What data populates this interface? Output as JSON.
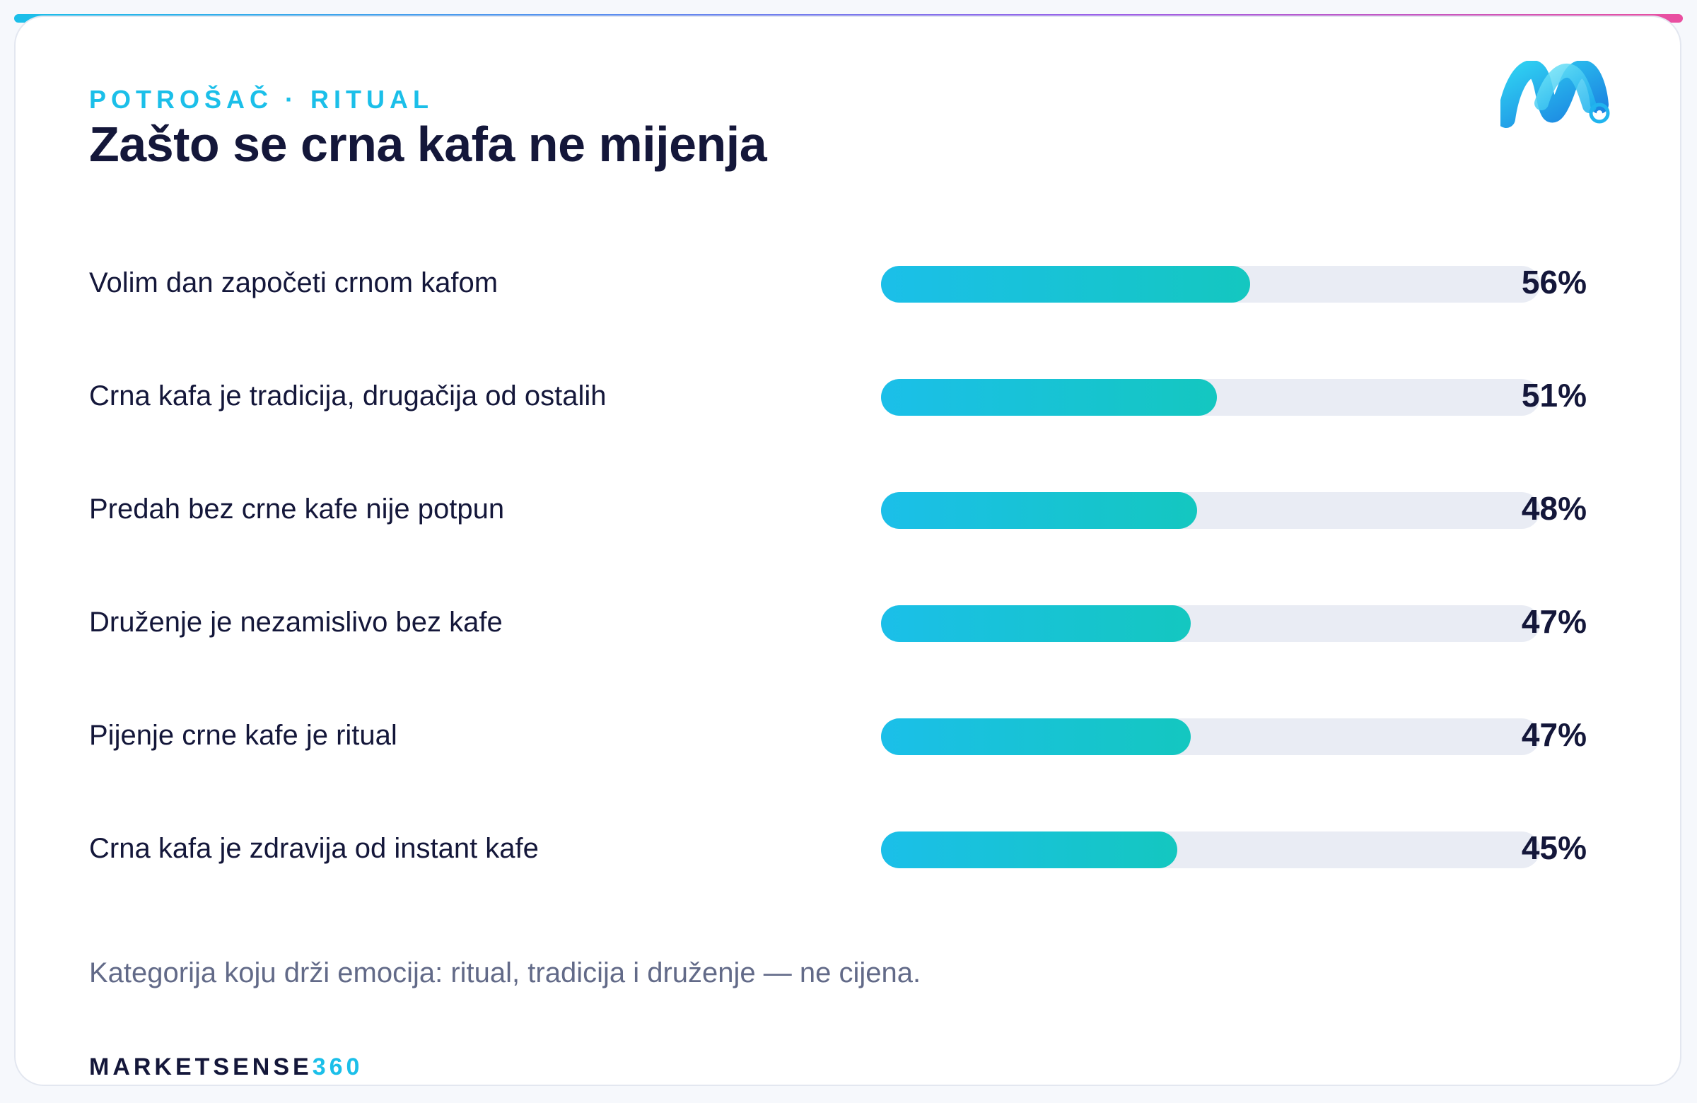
{
  "header": {
    "eyebrow": "POTROŠAČ · RITUAL",
    "title": "Zašto se crna kafa ne mijenja"
  },
  "chart_data": {
    "type": "bar",
    "orientation": "horizontal",
    "xlim": [
      0,
      100
    ],
    "unit": "%",
    "categories": [
      "Volim dan započeti crnom kafom",
      "Crna kafa je tradicija, drugačija od ostalih",
      "Predah bez crne kafe nije potpun",
      "Druženje je nezamislivo bez kafe",
      "Pijenje crne kafe je ritual",
      "Crna kafa je zdravija od instant kafe"
    ],
    "values": [
      56,
      51,
      48,
      47,
      47,
      45
    ],
    "value_labels": [
      "56%",
      "51%",
      "48%",
      "47%",
      "47%",
      "45%"
    ]
  },
  "footer": {
    "note": "Kategorija koju drži emocija: ritual, tradicija i druženje — ne cijena.",
    "brand_main": "MARKETSENSE",
    "brand_accent": "360"
  },
  "colors": {
    "accent": "#1bbfe9",
    "fill_end": "#14c7c0",
    "track": "#e9ecf4",
    "text": "#14173a",
    "muted": "#626a88"
  },
  "icons": {
    "logo": "marketsense-m-logo-icon"
  }
}
